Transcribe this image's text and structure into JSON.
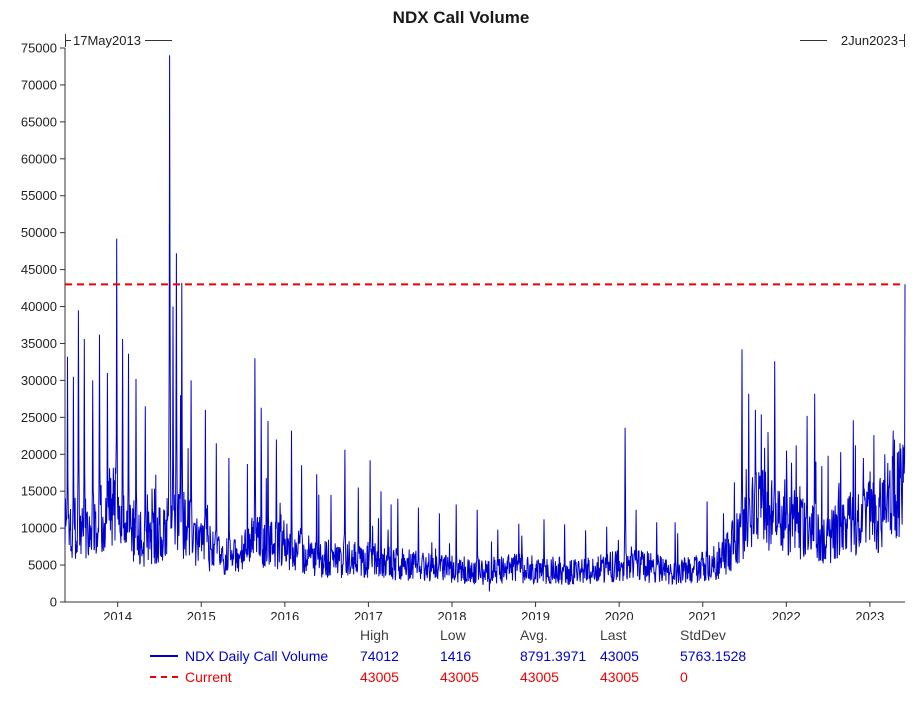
{
  "chart_data": {
    "type": "line",
    "title": "NDX Call Volume",
    "x_start": "17May2013",
    "x_end": "2Jun2023",
    "x_start_decimal": 2013.37,
    "x_end_decimal": 2023.42,
    "x_ticks": [
      2014,
      2015,
      2016,
      2017,
      2018,
      2019,
      2020,
      2021,
      2022,
      2023
    ],
    "ylim": [
      0,
      75000
    ],
    "y_ticks": [
      0,
      5000,
      10000,
      15000,
      20000,
      25000,
      30000,
      35000,
      40000,
      45000,
      50000,
      55000,
      60000,
      65000,
      70000,
      75000
    ],
    "grid": false,
    "series": [
      {
        "name": "NDX Daily Call Volume",
        "color": "#0000cd",
        "style": "solid",
        "stats": {
          "high": 74012,
          "low": 1416,
          "avg": 8791.3971,
          "last": 43005,
          "stddev": 5763.1528
        },
        "baseline_profile": [
          [
            2013.37,
            11000
          ],
          [
            2013.55,
            9500
          ],
          [
            2013.75,
            11500
          ],
          [
            2013.95,
            13000
          ],
          [
            2014.1,
            10500
          ],
          [
            2014.3,
            8500
          ],
          [
            2014.5,
            9000
          ],
          [
            2014.7,
            11500
          ],
          [
            2014.85,
            10000
          ],
          [
            2015.0,
            8000
          ],
          [
            2015.2,
            6200
          ],
          [
            2015.45,
            6000
          ],
          [
            2015.65,
            8500
          ],
          [
            2015.85,
            8000
          ],
          [
            2016.1,
            7500
          ],
          [
            2016.3,
            6200
          ],
          [
            2016.6,
            5800
          ],
          [
            2016.9,
            6200
          ],
          [
            2017.2,
            5400
          ],
          [
            2017.5,
            4900
          ],
          [
            2017.8,
            5100
          ],
          [
            2018.1,
            4400
          ],
          [
            2018.4,
            4100
          ],
          [
            2018.7,
            4600
          ],
          [
            2019.0,
            4400
          ],
          [
            2019.3,
            4200
          ],
          [
            2019.6,
            4300
          ],
          [
            2019.9,
            4700
          ],
          [
            2020.1,
            5300
          ],
          [
            2020.35,
            4700
          ],
          [
            2020.6,
            4200
          ],
          [
            2020.85,
            4300
          ],
          [
            2021.0,
            4700
          ],
          [
            2021.15,
            5300
          ],
          [
            2021.3,
            6500
          ],
          [
            2021.45,
            9500
          ],
          [
            2021.6,
            13500
          ],
          [
            2021.75,
            12500
          ],
          [
            2021.9,
            12000
          ],
          [
            2022.05,
            11000
          ],
          [
            2022.2,
            10000
          ],
          [
            2022.4,
            9000
          ],
          [
            2022.6,
            9300
          ],
          [
            2022.8,
            10500
          ],
          [
            2023.0,
            11500
          ],
          [
            2023.15,
            12500
          ],
          [
            2023.3,
            14000
          ],
          [
            2023.42,
            16500
          ]
        ],
        "spikes": [
          [
            2013.4,
            33200
          ],
          [
            2013.47,
            30500
          ],
          [
            2013.53,
            39500
          ],
          [
            2013.6,
            35600
          ],
          [
            2013.7,
            30000
          ],
          [
            2013.78,
            36200
          ],
          [
            2013.88,
            31000
          ],
          [
            2013.99,
            49200
          ],
          [
            2014.06,
            35600
          ],
          [
            2014.13,
            33600
          ],
          [
            2014.22,
            30200
          ],
          [
            2014.33,
            26500
          ],
          [
            2014.62,
            74012
          ],
          [
            2014.66,
            40000
          ],
          [
            2014.7,
            47200
          ],
          [
            2014.77,
            43200
          ],
          [
            2014.88,
            30000
          ],
          [
            2015.05,
            26000
          ],
          [
            2015.18,
            21500
          ],
          [
            2015.33,
            19500
          ],
          [
            2015.64,
            33000
          ],
          [
            2015.72,
            26300
          ],
          [
            2015.8,
            24500
          ],
          [
            2015.9,
            22000
          ],
          [
            2016.08,
            23200
          ],
          [
            2016.2,
            18500
          ],
          [
            2016.38,
            17300
          ],
          [
            2016.55,
            14500
          ],
          [
            2016.72,
            20600
          ],
          [
            2016.88,
            15500
          ],
          [
            2017.02,
            19200
          ],
          [
            2017.15,
            15000
          ],
          [
            2017.35,
            14000
          ],
          [
            2017.6,
            12800
          ],
          [
            2017.85,
            12000
          ],
          [
            2018.05,
            13200
          ],
          [
            2018.3,
            12500
          ],
          [
            2018.55,
            9800
          ],
          [
            2018.8,
            10600
          ],
          [
            2019.1,
            11200
          ],
          [
            2019.35,
            10500
          ],
          [
            2019.6,
            9700
          ],
          [
            2019.85,
            10200
          ],
          [
            2020.07,
            23600
          ],
          [
            2020.2,
            12500
          ],
          [
            2020.45,
            10800
          ],
          [
            2020.7,
            9300
          ],
          [
            2021.05,
            13600
          ],
          [
            2021.25,
            12000
          ],
          [
            2021.38,
            16200
          ],
          [
            2021.47,
            34200
          ],
          [
            2021.55,
            28200
          ],
          [
            2021.63,
            26000
          ],
          [
            2021.7,
            25400
          ],
          [
            2021.78,
            23000
          ],
          [
            2021.86,
            32600
          ],
          [
            2022.0,
            20500
          ],
          [
            2022.12,
            21200
          ],
          [
            2022.25,
            25200
          ],
          [
            2022.34,
            28200
          ],
          [
            2022.5,
            19800
          ],
          [
            2022.65,
            20300
          ],
          [
            2022.8,
            24600
          ],
          [
            2022.92,
            19500
          ],
          [
            2023.05,
            22600
          ],
          [
            2023.18,
            20000
          ],
          [
            2023.28,
            23200
          ],
          [
            2023.36,
            21500
          ],
          [
            2023.42,
            43005
          ]
        ],
        "low_point": [
          2018.45,
          1416
        ]
      },
      {
        "name": "Current",
        "color": "#ee0000",
        "style": "dashed",
        "value": 43005,
        "stats": {
          "high": 43005,
          "low": 43005,
          "avg": 43005,
          "last": 43005,
          "stddev": 0
        }
      }
    ],
    "legend": {
      "headers": [
        "High",
        "Low",
        "Avg.",
        "Last",
        "StdDev"
      ],
      "rows": [
        {
          "label": "NDX Daily Call Volume",
          "color": "#0000cd",
          "values": [
            "74012",
            "1416",
            "8791.3971",
            "43005",
            "5763.1528"
          ]
        },
        {
          "label": "Current",
          "color": "#ee0000",
          "values": [
            "43005",
            "43005",
            "43005",
            "43005",
            "0"
          ]
        }
      ]
    }
  }
}
